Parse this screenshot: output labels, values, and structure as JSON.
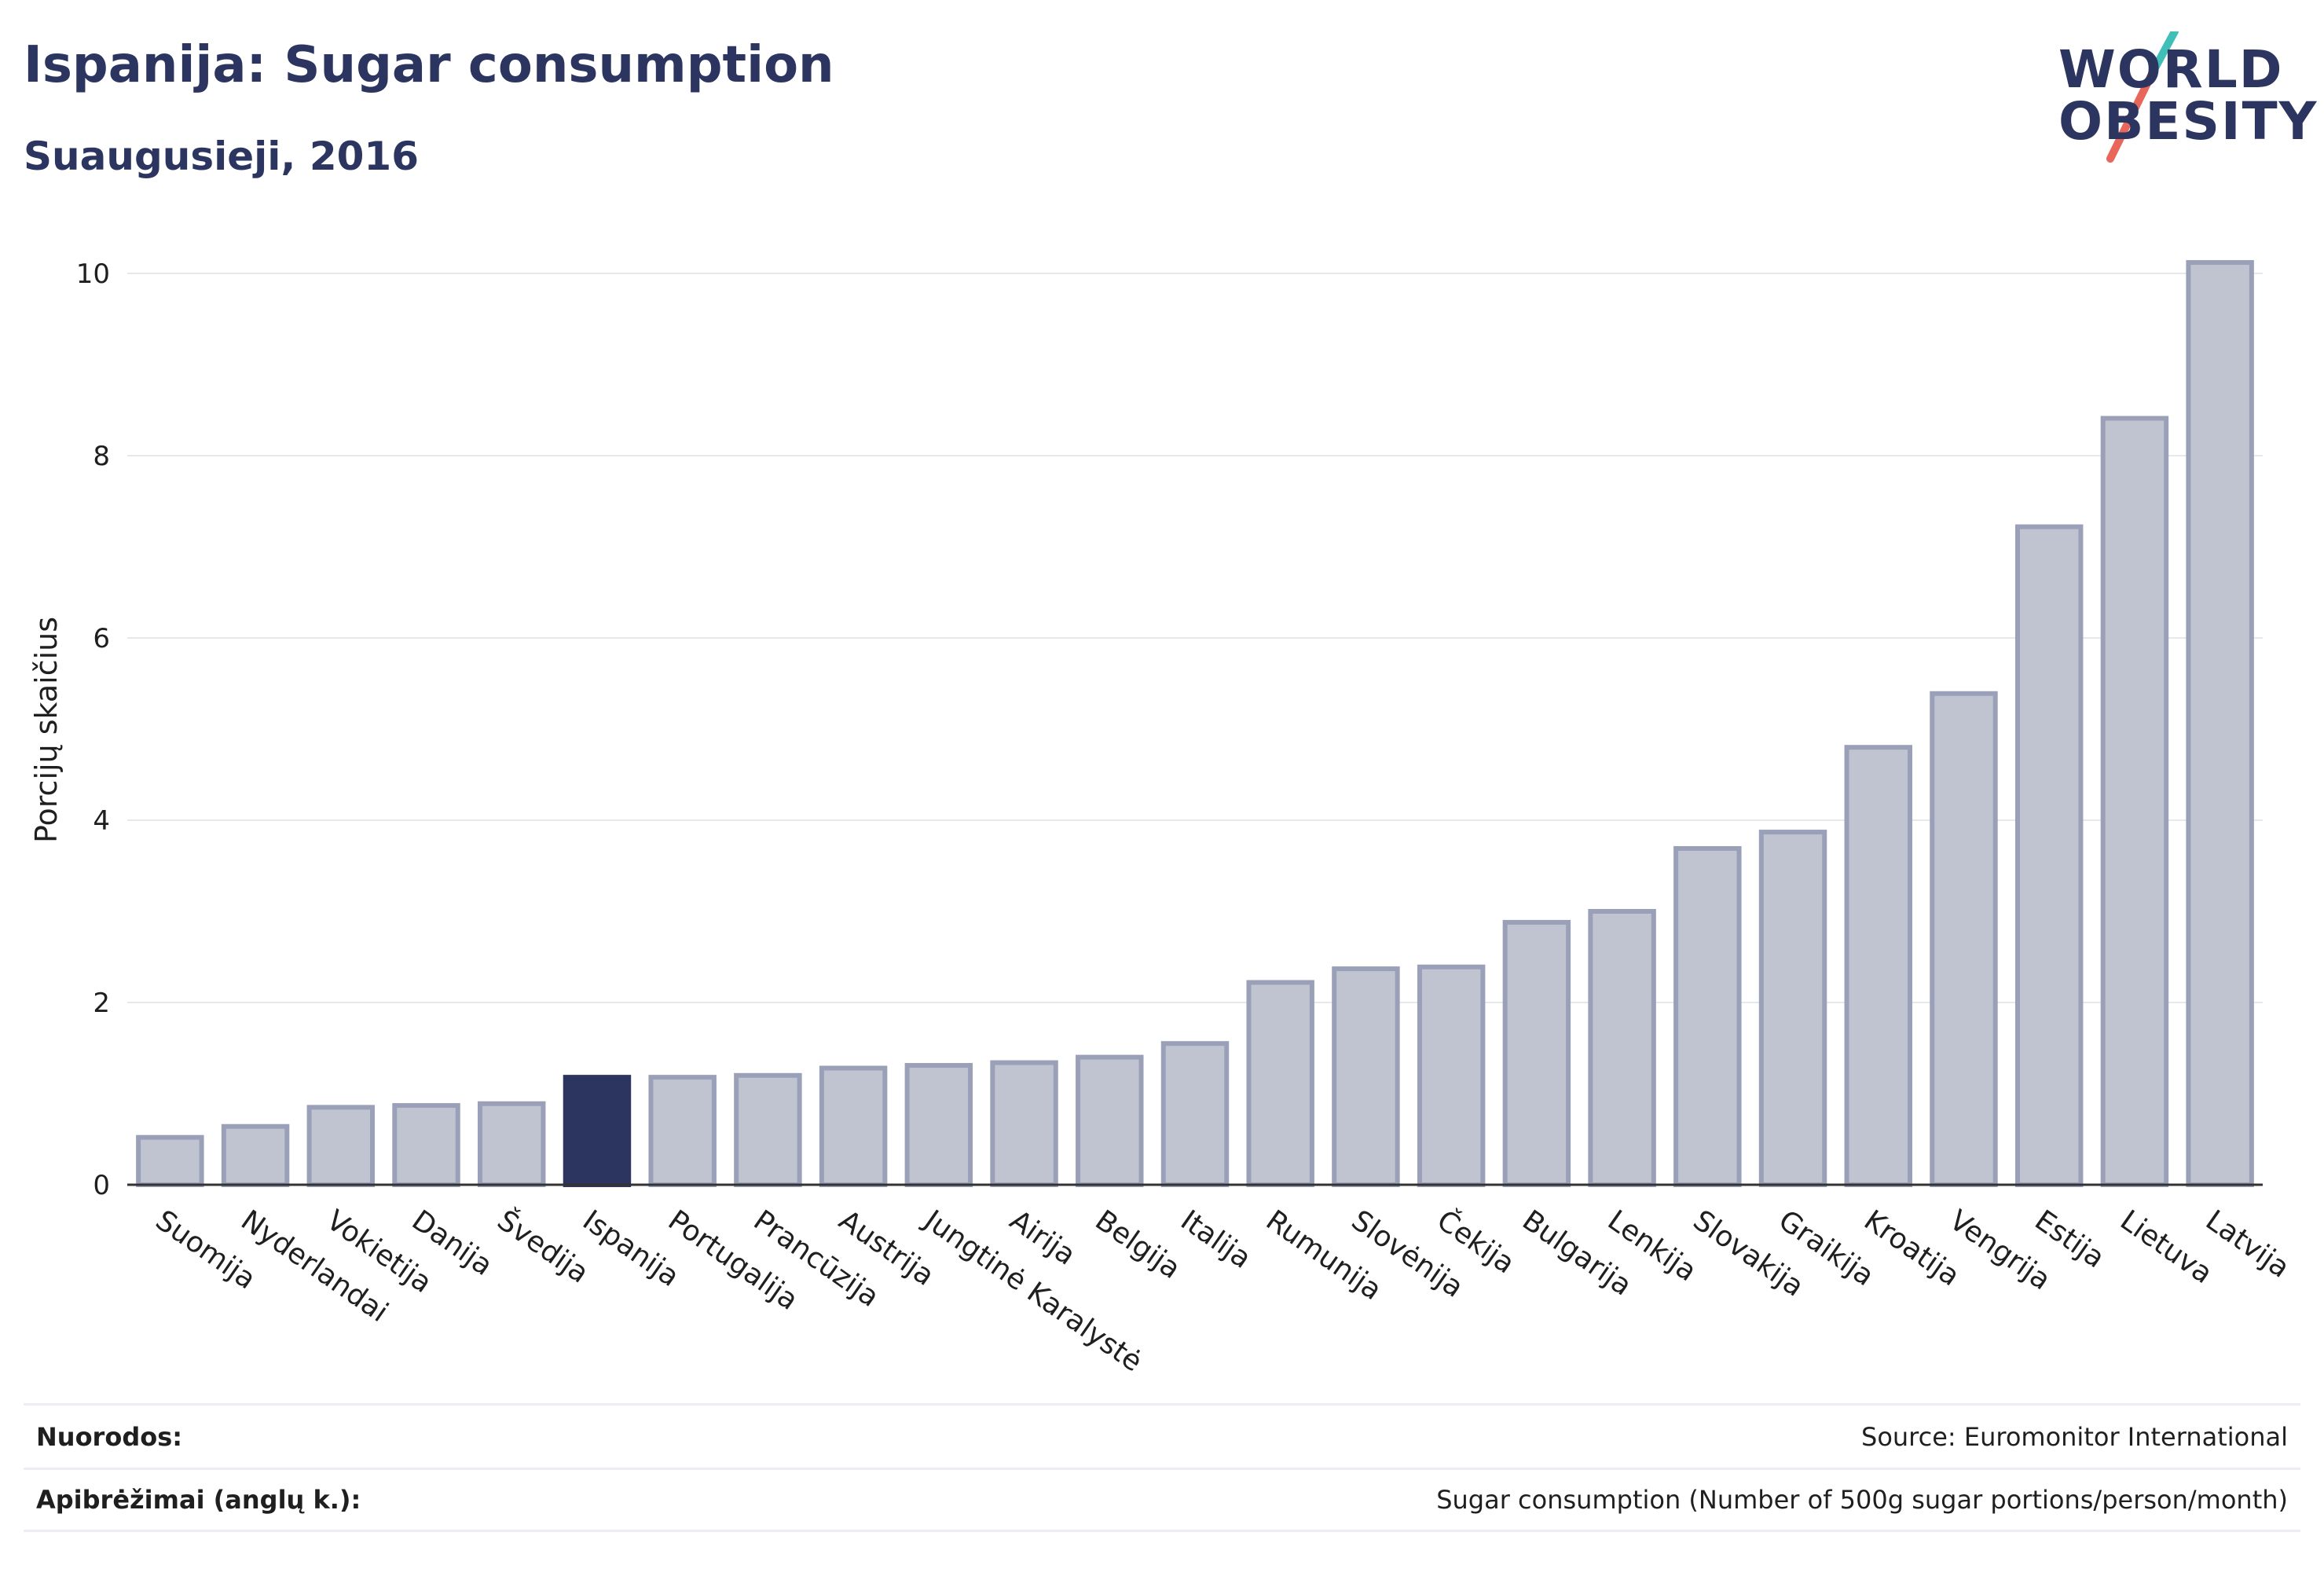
{
  "header": {
    "title": "Ispanija: Sugar consumption",
    "subtitle": "Suaugusieji, 2016"
  },
  "logo": {
    "line1": "WORLD",
    "line2": "OBESITY",
    "colors": {
      "text": "#2b3560",
      "slash_top": "#3fbfb8",
      "slash_bottom": "#e8675a"
    }
  },
  "chart_data": {
    "type": "bar",
    "ylabel": "Porcijų skaičius",
    "ylim": [
      0,
      10.5
    ],
    "yticks": [
      0,
      2,
      4,
      6,
      8,
      10
    ],
    "grid": true,
    "highlight": "Ispanija",
    "colors": {
      "bar": "#c0c4d0",
      "bar_edge": "#9aa0b8",
      "highlight": "#2b3560",
      "grid": "#e6e8ee"
    },
    "categories": [
      "Suomija",
      "Nyderlandai",
      "Vokietija",
      "Danija",
      "Švedija",
      "Ispanija",
      "Portugalija",
      "Prancūzija",
      "Austrija",
      "Jungtinė Karalystė",
      "Airija",
      "Belgija",
      "Italija",
      "Rumunija",
      "Slovėnija",
      "Čekija",
      "Bulgarija",
      "Lenkija",
      "Slovakija",
      "Graikija",
      "Kroatija",
      "Vengrija",
      "Estija",
      "Lietuva",
      "Latvija"
    ],
    "values": [
      0.52,
      0.64,
      0.85,
      0.87,
      0.89,
      1.18,
      1.18,
      1.2,
      1.28,
      1.31,
      1.34,
      1.4,
      1.55,
      2.22,
      2.37,
      2.39,
      2.88,
      3.0,
      3.69,
      3.87,
      4.8,
      5.39,
      7.22,
      8.41,
      10.12
    ]
  },
  "footer": {
    "references_label": "Nuorodos:",
    "references_value": "Source: Euromonitor International",
    "definitions_label": "Apibrėžimai (anglų k.):",
    "definitions_value": "Sugar consumption (Number of 500g sugar portions/person/month)"
  }
}
